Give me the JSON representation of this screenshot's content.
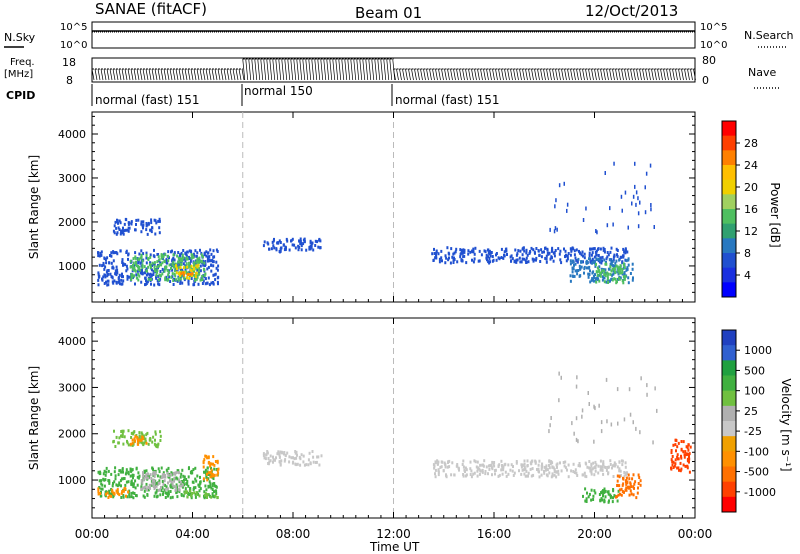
{
  "header": {
    "station": "SANAE (fitACF)",
    "beam": "Beam 01",
    "date": "12/Oct/2013"
  },
  "status_panel": {
    "sky_label": "N.Sky",
    "sky_ticks": [
      "10^5",
      "10^0"
    ],
    "search_label": "N.Search",
    "search_ticks": [
      "10^5",
      "10^0"
    ],
    "freq_label": "Freq.",
    "freq_unit": "[MHz]",
    "freq_ticks": [
      18,
      8
    ],
    "nave_label": "Nave",
    "nave_ticks": [
      80,
      0
    ],
    "cpid_label": "CPID",
    "cpid_segments": [
      {
        "label": "normal (fast) 151",
        "start_hr": 0,
        "end_hr": 6
      },
      {
        "label": "normal 150",
        "start_hr": 6,
        "end_hr": 12
      },
      {
        "label": "normal (fast) 151",
        "start_hr": 12,
        "end_hr": 24
      }
    ]
  },
  "x_axis": {
    "label": "Time UT",
    "ticks": [
      "00:00",
      "04:00",
      "08:00",
      "12:00",
      "16:00",
      "20:00",
      "00:00"
    ],
    "tick_hours": [
      0,
      4,
      8,
      12,
      16,
      20,
      24
    ],
    "range_hr": [
      0,
      24
    ]
  },
  "power_colorbar": {
    "label": "Power [dB]",
    "ticks": [
      "28",
      "24",
      "20",
      "16",
      "12",
      "8",
      "4"
    ],
    "colors": [
      "#ff0000",
      "#ff4000",
      "#ff8000",
      "#ffbf00",
      "#f0d000",
      "#a0d060",
      "#4fbf60",
      "#30a070",
      "#2878c0",
      "#2050d0",
      "#1a30e0",
      "#0000ff"
    ]
  },
  "velocity_colorbar": {
    "label": "Velocity  [m s⁻¹]",
    "ticks": [
      "1000",
      "500",
      "100",
      "25",
      "-25",
      "-100",
      "-500",
      "-1000"
    ],
    "colors": [
      "#2040c0",
      "#3060d0",
      "#20a040",
      "#40b040",
      "#70c040",
      "#b0b0b0",
      "#c8c8c8",
      "#f0a000",
      "#ff9000",
      "#ff7000",
      "#ff4000",
      "#ff0000"
    ]
  },
  "chart_data": [
    {
      "type": "heatmap",
      "title": "Power",
      "xlabel": "Time UT",
      "ylabel": "Slant Range [km]",
      "xlim": [
        0,
        24
      ],
      "ylim": [
        180,
        4500
      ],
      "yticks": [
        1000,
        2000,
        3000,
        4000
      ],
      "color_scale": "Power [dB]",
      "clusters": [
        {
          "t0": 0.2,
          "t1": 5.0,
          "r0": 600,
          "r1": 1400,
          "val": "#2050d0"
        },
        {
          "t0": 1.5,
          "t1": 4.5,
          "r0": 700,
          "r1": 1300,
          "val": "#4fbf60"
        },
        {
          "t0": 3.3,
          "t1": 4.2,
          "r0": 750,
          "r1": 1050,
          "val": "#f0d000"
        },
        {
          "t0": 3.5,
          "t1": 4.0,
          "r0": 800,
          "r1": 900,
          "val": "#ff8000"
        },
        {
          "t0": 0.8,
          "t1": 2.7,
          "r0": 1750,
          "r1": 2100,
          "val": "#2050d0"
        },
        {
          "t0": 6.8,
          "t1": 9.1,
          "r0": 1350,
          "r1": 1650,
          "val": "#2050d0"
        },
        {
          "t0": 13.5,
          "t1": 21.3,
          "r0": 1100,
          "r1": 1450,
          "val": "#2050d0"
        },
        {
          "t0": 19.0,
          "t1": 21.5,
          "r0": 650,
          "r1": 1200,
          "val": "#2878c0"
        },
        {
          "t0": 20.0,
          "t1": 21.2,
          "r0": 650,
          "r1": 1100,
          "val": "#4fbf60"
        },
        {
          "t0": 18.0,
          "t1": 22.5,
          "r0": 1800,
          "r1": 3400,
          "val": "#2050d0"
        }
      ]
    },
    {
      "type": "heatmap",
      "title": "Velocity",
      "xlabel": "Time UT",
      "ylabel": "Slant Range [km]",
      "xlim": [
        0,
        24
      ],
      "ylim": [
        180,
        4500
      ],
      "yticks": [
        1000,
        2000,
        3000,
        4000
      ],
      "color_scale": "Velocity [m s^-1]",
      "clusters": [
        {
          "t0": 0.2,
          "t1": 5.0,
          "r0": 650,
          "r1": 1300,
          "val": "#40b040"
        },
        {
          "t0": 0.2,
          "t1": 1.4,
          "r0": 650,
          "r1": 850,
          "val": "#ff9000"
        },
        {
          "t0": 1.8,
          "t1": 3.6,
          "r0": 800,
          "r1": 1200,
          "val": "#b0b0b0"
        },
        {
          "t0": 3.6,
          "t1": 5.0,
          "r0": 650,
          "r1": 800,
          "val": "#70c040"
        },
        {
          "t0": 0.8,
          "t1": 2.7,
          "r0": 1750,
          "r1": 2100,
          "val": "#70c040"
        },
        {
          "t0": 1.5,
          "t1": 2.2,
          "r0": 1800,
          "r1": 2050,
          "val": "#ff9000"
        },
        {
          "t0": 4.4,
          "t1": 5.0,
          "r0": 1000,
          "r1": 1550,
          "val": "#ff9000"
        },
        {
          "t0": 6.8,
          "t1": 9.1,
          "r0": 1350,
          "r1": 1650,
          "val": "#c8c8c8"
        },
        {
          "t0": 13.5,
          "t1": 21.3,
          "r0": 1100,
          "r1": 1450,
          "val": "#c8c8c8"
        },
        {
          "t0": 19.5,
          "t1": 21.0,
          "r0": 550,
          "r1": 850,
          "val": "#40b040"
        },
        {
          "t0": 20.8,
          "t1": 21.8,
          "r0": 650,
          "r1": 1150,
          "val": "#ff7000"
        },
        {
          "t0": 23.0,
          "t1": 23.8,
          "r0": 1200,
          "r1": 1900,
          "val": "#ff4000"
        },
        {
          "t0": 18.0,
          "t1": 22.5,
          "r0": 1800,
          "r1": 3400,
          "val": "#b0b0b0"
        }
      ]
    }
  ]
}
